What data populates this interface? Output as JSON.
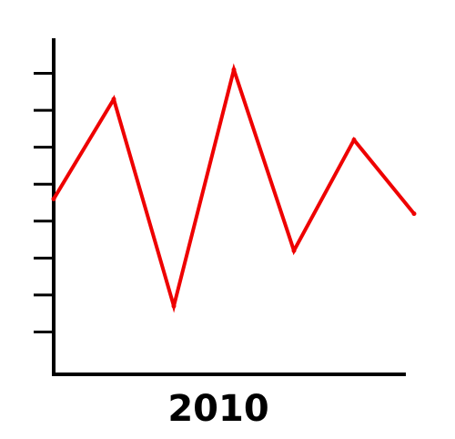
{
  "chart_data": {
    "type": "line",
    "xlabel": "2010",
    "ylabel": "",
    "title": "",
    "x": [
      0,
      1,
      2,
      3,
      4,
      5,
      6
    ],
    "series": [
      {
        "values": [
          4.6,
          7.3,
          1.7,
          8.1,
          3.2,
          6.2,
          4.2
        ]
      }
    ],
    "y_ticks": [
      1,
      2,
      3,
      4,
      5,
      6,
      7,
      8
    ],
    "ylim": [
      0,
      9
    ],
    "grid": false,
    "line_color": "#ee0000",
    "axis_color": "#000000"
  }
}
